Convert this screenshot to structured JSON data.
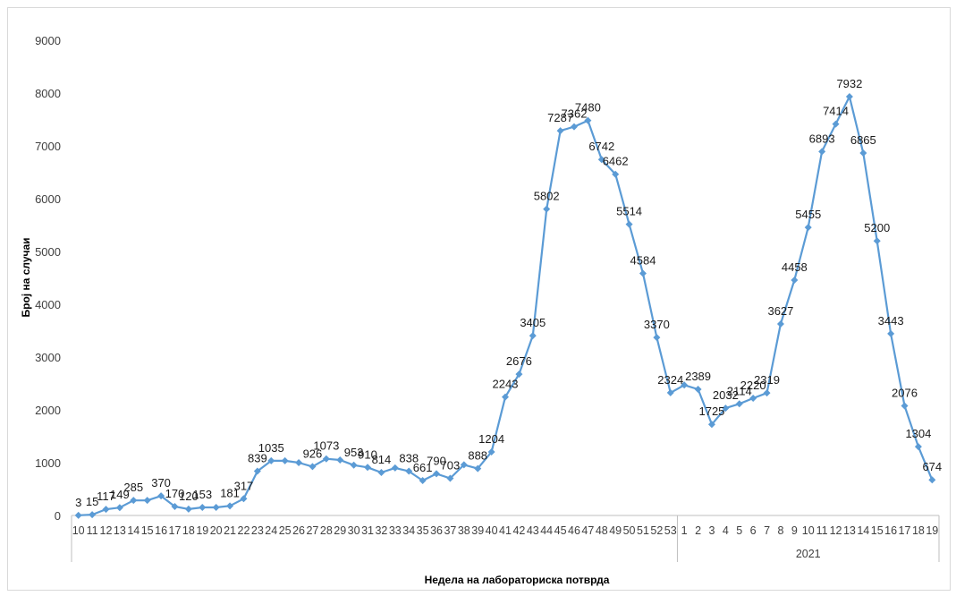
{
  "chart_data": {
    "type": "line",
    "title": "",
    "ylabel": "Број на случаи",
    "xlabel": "Недела на лабораториска потврда",
    "ylim": [
      0,
      9000
    ],
    "yticks": [
      0,
      1000,
      2000,
      3000,
      4000,
      5000,
      6000,
      7000,
      8000,
      9000
    ],
    "grid": false,
    "legend": "none",
    "series_color": "#5b9bd5",
    "x": [
      "10",
      "11",
      "12",
      "13",
      "14",
      "15",
      "16",
      "17",
      "18",
      "19",
      "20",
      "21",
      "22",
      "23",
      "24",
      "25",
      "26",
      "27",
      "28",
      "29",
      "30",
      "31",
      "32",
      "33",
      "34",
      "35",
      "36",
      "37",
      "38",
      "39",
      "40",
      "41",
      "42",
      "43",
      "44",
      "45",
      "46",
      "47",
      "48",
      "49",
      "50",
      "51",
      "52",
      "53",
      "1",
      "2",
      "3",
      "4",
      "5",
      "6",
      "7",
      "8",
      "9",
      "10",
      "11",
      "12",
      "13",
      "14",
      "15",
      "16",
      "17",
      "18",
      "19"
    ],
    "year_groups": [
      {
        "label": "",
        "from": 0,
        "to": 43
      },
      {
        "label": "2021",
        "from": 44,
        "to": 62
      }
    ],
    "values": [
      3,
      15,
      117,
      149,
      285,
      285,
      370,
      170,
      120,
      153,
      153,
      181,
      317,
      839,
      1035,
      1035,
      1000,
      926,
      1073,
      1050,
      953,
      910,
      814,
      900,
      838,
      661,
      790,
      703,
      960,
      888,
      1204,
      2243,
      2676,
      3405,
      5802,
      7287,
      7362,
      7480,
      6742,
      6462,
      5514,
      4584,
      3370,
      2324,
      2470,
      2389,
      1725,
      2032,
      2114,
      2220,
      2319,
      3627,
      4458,
      5455,
      6893,
      7414,
      7932,
      6865,
      5200,
      3443,
      2076,
      1304,
      674
    ],
    "labels": [
      "3",
      "15",
      "117",
      "149",
      "285",
      "",
      "370",
      "170",
      "120",
      "153",
      "",
      "181",
      "317",
      "839",
      "1035",
      "",
      "",
      "926",
      "1073",
      "",
      "953",
      "910",
      "814",
      "",
      "838",
      "661",
      "790",
      "703",
      "",
      "888",
      "1204",
      "2243",
      "2676",
      "3405",
      "5802",
      "7287",
      "7362",
      "7480",
      "6742",
      "6462",
      "5514",
      "4584",
      "3370",
      "2324",
      "",
      "2389",
      "1725",
      "2032",
      "2114",
      "2220",
      "2319",
      "3627",
      "4458",
      "5455",
      "6893",
      "7414",
      "7932",
      "6865",
      "5200",
      "3443",
      "2076",
      "1304",
      "674"
    ]
  }
}
